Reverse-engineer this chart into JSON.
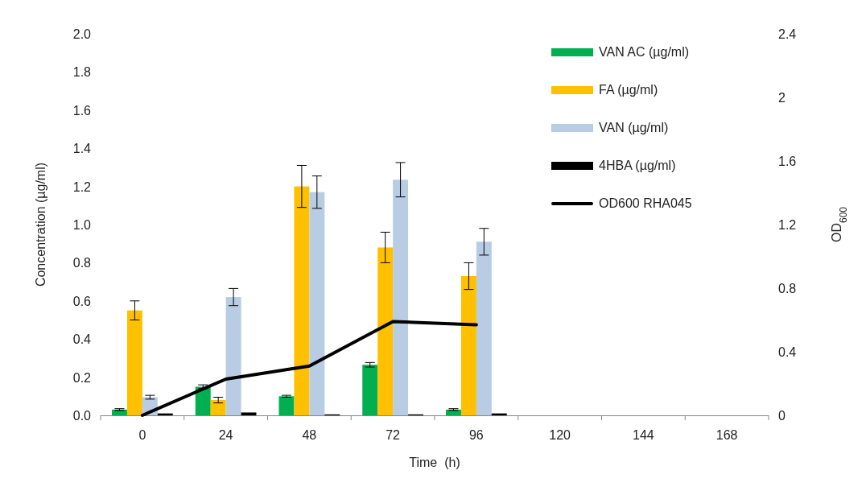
{
  "chart_data": {
    "type": "bar",
    "xlabel": "Time  (h)",
    "ylabel": "Concentration (µg/ml)",
    "y2label": "OD$_{600}$",
    "categories": [
      "0",
      "24",
      "48",
      "72",
      "96",
      "120",
      "144",
      "168"
    ],
    "series": [
      {
        "name": "VAN AC (µg/ml)",
        "color": "#00b050",
        "values": [
          0.03,
          0.15,
          0.1,
          0.265,
          0.03,
          null,
          null,
          null
        ],
        "errors": [
          0.005,
          0.01,
          0.005,
          0.012,
          0.005,
          null,
          null,
          null
        ]
      },
      {
        "name": "FA (µg/ml)",
        "color": "#ffc000",
        "values": [
          0.55,
          0.08,
          1.2,
          0.88,
          0.73,
          null,
          null,
          null
        ],
        "errors": [
          0.05,
          0.015,
          0.11,
          0.08,
          0.07,
          null,
          null,
          null
        ]
      },
      {
        "name": "VAN (µg/ml)",
        "color": "#b8cce4",
        "values": [
          0.095,
          0.62,
          1.17,
          1.235,
          0.91,
          null,
          null,
          null
        ],
        "errors": [
          0.01,
          0.045,
          0.085,
          0.09,
          0.07,
          null,
          null,
          null
        ]
      },
      {
        "name": "4HBA (µg/ml)",
        "color": "#000000",
        "values": [
          0.01,
          0.015,
          0.005,
          0.005,
          0.01,
          null,
          null,
          null
        ]
      },
      {
        "name": "OD600 RHA045",
        "type": "line",
        "axis": "y2",
        "color": "#000000",
        "values": [
          0,
          0.228,
          0.31,
          0.59,
          0.57,
          null,
          null,
          null
        ]
      }
    ],
    "ylim": [
      0,
      2
    ],
    "yticks": [
      {
        "value": 0,
        "label": "0.0"
      },
      {
        "value": 0.2,
        "label": "0.2"
      },
      {
        "value": 0.4,
        "label": "0.4"
      },
      {
        "value": 0.6,
        "label": "0.6"
      },
      {
        "value": 0.8,
        "label": "0.8"
      },
      {
        "value": 1,
        "label": "1.0"
      },
      {
        "value": 1.2,
        "label": "1.2"
      },
      {
        "value": 1.4,
        "label": "1.4"
      },
      {
        "value": 1.6,
        "label": "1.6"
      },
      {
        "value": 1.8,
        "label": "1.8"
      },
      {
        "value": 2,
        "label": "2.0"
      }
    ],
    "y2lim": [
      0,
      2.4
    ],
    "y2ticks": [
      0,
      0.4,
      0.8,
      1.2,
      1.6,
      2,
      2.4
    ],
    "grid": false,
    "legend": "top right",
    "marker": "none",
    "line_style": "solid"
  }
}
